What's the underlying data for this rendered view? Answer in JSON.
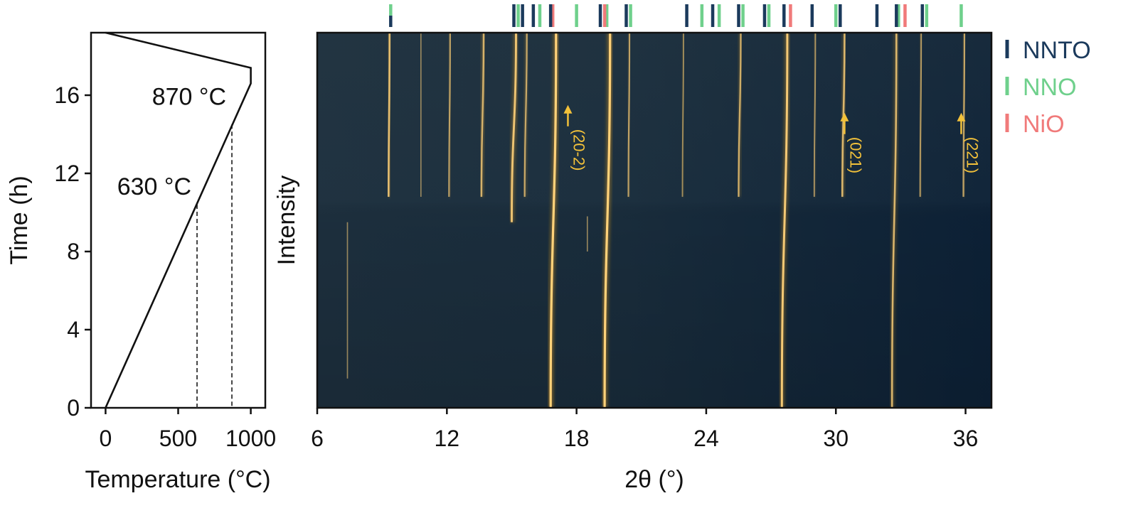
{
  "colors": {
    "nnto": "#1b3a5c",
    "nno": "#6fd08c",
    "nio": "#f07a7a",
    "peak": "#ffb020",
    "annotation": "#f2c13a",
    "background_dark": "#0f2436",
    "background_mid": "#1c3040"
  },
  "chart_data": [
    {
      "type": "line",
      "xlabel": "Temperature (°C)",
      "ylabel": "Time (h)",
      "xlim": [
        -100,
        1100
      ],
      "ylim": [
        0,
        19.2
      ],
      "xticks": [
        0,
        500,
        1000
      ],
      "yticks": [
        0,
        4,
        8,
        12,
        16
      ],
      "series": [
        {
          "values": [
            [
              0,
              0
            ],
            [
              1000,
              16.6
            ],
            [
              1000,
              17.4
            ],
            [
              0,
              19.2
            ]
          ]
        }
      ],
      "markers": [
        {
          "label": "630 °C",
          "x": 630,
          "y": 10.4
        },
        {
          "label": "870 °C",
          "x": 870,
          "y": 14.5
        }
      ]
    },
    {
      "type": "heatmap",
      "xlabel": "2θ (°)",
      "ylabel": "Intensity",
      "xlim": [
        6,
        37.2
      ],
      "ylim": [
        0,
        19.2
      ],
      "xticks": [
        6,
        12,
        18,
        24,
        30,
        36
      ],
      "peaks": [
        {
          "x": 9.3,
          "y_start": 10.8,
          "y_end": 19.2,
          "intensity": 0.75,
          "drift": 0.05
        },
        {
          "x": 10.8,
          "y_start": 10.8,
          "y_end": 19.2,
          "intensity": 0.3,
          "drift": 0.0
        },
        {
          "x": 12.1,
          "y_start": 10.8,
          "y_end": 19.2,
          "intensity": 0.5,
          "drift": 0.05
        },
        {
          "x": 13.6,
          "y_start": 10.8,
          "y_end": 19.2,
          "intensity": 0.65,
          "drift": 0.1
        },
        {
          "x": 15.0,
          "y_start": 9.5,
          "y_end": 19.2,
          "intensity": 0.85,
          "drift": 0.2
        },
        {
          "x": 15.6,
          "y_start": 10.8,
          "y_end": 19.2,
          "intensity": 0.55,
          "drift": 0.1
        },
        {
          "x": 16.8,
          "y_start": 0,
          "y_end": 19.2,
          "intensity": 1.0,
          "drift": 0.25
        },
        {
          "x": 19.3,
          "y_start": 0,
          "y_end": 19.2,
          "intensity": 1.0,
          "drift": 0.25
        },
        {
          "x": 20.4,
          "y_start": 10.8,
          "y_end": 19.2,
          "intensity": 0.5,
          "drift": 0.05
        },
        {
          "x": 22.9,
          "y_start": 10.8,
          "y_end": 19.2,
          "intensity": 0.35,
          "drift": 0.05
        },
        {
          "x": 25.5,
          "y_start": 10.8,
          "y_end": 19.2,
          "intensity": 0.6,
          "drift": 0.1
        },
        {
          "x": 27.5,
          "y_start": 0,
          "y_end": 19.2,
          "intensity": 0.9,
          "drift": 0.25
        },
        {
          "x": 29.0,
          "y_start": 10.8,
          "y_end": 19.2,
          "intensity": 0.4,
          "drift": 0.05
        },
        {
          "x": 30.3,
          "y_start": 10.8,
          "y_end": 19.2,
          "intensity": 0.7,
          "drift": 0.1
        },
        {
          "x": 32.6,
          "y_start": 0,
          "y_end": 19.2,
          "intensity": 0.7,
          "drift": 0.2
        },
        {
          "x": 33.9,
          "y_start": 10.8,
          "y_end": 19.2,
          "intensity": 0.45,
          "drift": 0.05
        },
        {
          "x": 35.9,
          "y_start": 10.8,
          "y_end": 19.2,
          "intensity": 0.55,
          "drift": 0.05
        },
        {
          "x": 7.4,
          "y_start": 1.5,
          "y_end": 9.5,
          "intensity": 0.3,
          "drift": 0.0
        },
        {
          "x": 18.5,
          "y_start": 8.0,
          "y_end": 9.8,
          "intensity": 0.3,
          "drift": 0.0
        }
      ],
      "reference_ticks": {
        "NNTO": [
          9.4,
          15.1,
          15.5,
          16.0,
          16.8,
          19.1,
          20.3,
          23.1,
          24.3,
          25.5,
          26.7,
          27.6,
          28.9,
          30.2,
          31.9,
          32.8,
          34.0
        ],
        "NNO": [
          9.4,
          15.3,
          16.3,
          18.0,
          19.4,
          20.5,
          23.8,
          24.6,
          25.7,
          26.9,
          30.0,
          32.9,
          34.2,
          35.8
        ],
        "NiO": [
          16.9,
          19.3,
          27.9,
          33.2
        ]
      },
      "annotations": [
        {
          "label": "(20-2)",
          "x": 17.6,
          "arrow_y": 15.5
        },
        {
          "label": "(021)",
          "x": 30.4,
          "arrow_y": 15.1
        },
        {
          "label": "(221)",
          "x": 35.8,
          "arrow_y": 15.1
        }
      ]
    }
  ],
  "legend": [
    {
      "label": "NNTO",
      "key": "nnto"
    },
    {
      "label": "NNO",
      "key": "nno"
    },
    {
      "label": "NiO",
      "key": "nio"
    }
  ]
}
